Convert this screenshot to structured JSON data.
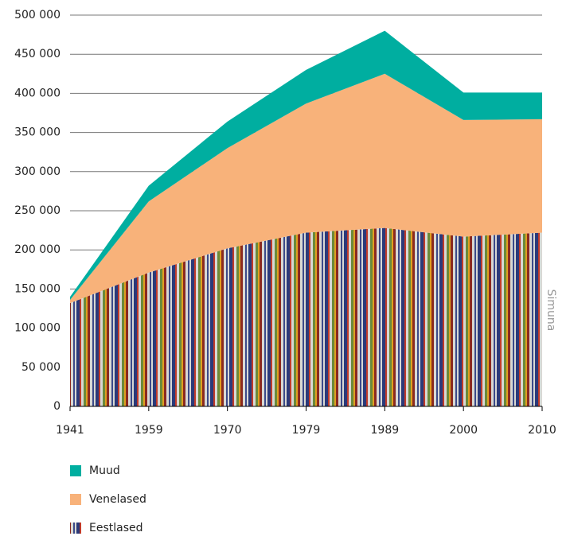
{
  "chart_data": {
    "type": "stacked_area",
    "categories": [
      "1941",
      "1959",
      "1970",
      "1979",
      "1989",
      "2000",
      "2010"
    ],
    "series": [
      {
        "name": "Eestlased",
        "color": "#8b3a2f",
        "pattern": "stripes",
        "values": [
          132000,
          171000,
          202000,
          222000,
          228000,
          217000,
          222000
        ]
      },
      {
        "name": "Venelased",
        "color": "#f8b27a",
        "values": [
          4000,
          91000,
          128000,
          165000,
          197000,
          149000,
          145000
        ]
      },
      {
        "name": "Muud",
        "color": "#00aea0",
        "values": [
          4000,
          20000,
          34000,
          43000,
          55000,
          35000,
          34000
        ]
      }
    ],
    "ylim": [
      0,
      500000
    ],
    "yticks": [
      {
        "value": 0,
        "label": "0"
      },
      {
        "value": 50000,
        "label": "50 000"
      },
      {
        "value": 100000,
        "label": "100 000"
      },
      {
        "value": 150000,
        "label": "150 000"
      },
      {
        "value": 200000,
        "label": "200 000"
      },
      {
        "value": 250000,
        "label": "250 000"
      },
      {
        "value": 300000,
        "label": "300 000"
      },
      {
        "value": 350000,
        "label": "350 000"
      },
      {
        "value": 400000,
        "label": "400 000"
      },
      {
        "value": 450000,
        "label": "450 000"
      },
      {
        "value": 500000,
        "label": "500 000"
      }
    ],
    "grid": true,
    "annotation": "Simuna"
  }
}
